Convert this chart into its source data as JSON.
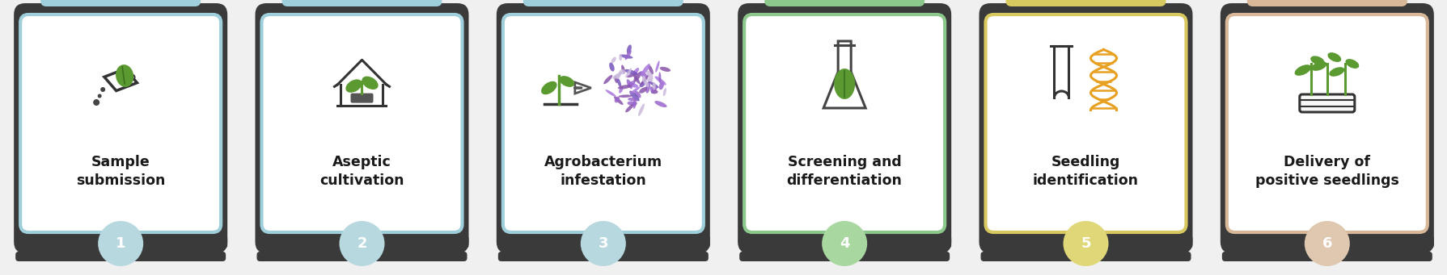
{
  "steps": [
    {
      "number": "1",
      "title": "Sample\nsubmission",
      "border_color": "#9ecfdb",
      "tab_color": "#9ecfdb",
      "badge_color": "#b8d8e0",
      "frame_color": "#555555"
    },
    {
      "number": "2",
      "title": "Aseptic\ncultivation",
      "border_color": "#9ecfdb",
      "tab_color": "#9ecfdb",
      "badge_color": "#b8d8e0",
      "frame_color": "#555555"
    },
    {
      "number": "3",
      "title": "Agrobacterium\ninfestation",
      "border_color": "#9ecfdb",
      "tab_color": "#9ecfdb",
      "badge_color": "#b8d8e0",
      "frame_color": "#555555"
    },
    {
      "number": "4",
      "title": "Screening and\ndifferentiation",
      "border_color": "#8cc88c",
      "tab_color": "#8cc88c",
      "badge_color": "#a8d8a0",
      "frame_color": "#555555"
    },
    {
      "number": "5",
      "title": "Seedling\nidentification",
      "border_color": "#d8c860",
      "tab_color": "#d8c860",
      "badge_color": "#e0d878",
      "frame_color": "#555555"
    },
    {
      "number": "6",
      "title": "Delivery of\npositive seedlings",
      "border_color": "#d8b898",
      "tab_color": "#d8b898",
      "badge_color": "#e0c8b0",
      "frame_color": "#555555"
    }
  ],
  "bg_color": "#f0f0f0",
  "card_bg": "#ffffff",
  "title_fontsize": 12.5,
  "number_fontsize": 13,
  "outer_frame_color": "#333333"
}
